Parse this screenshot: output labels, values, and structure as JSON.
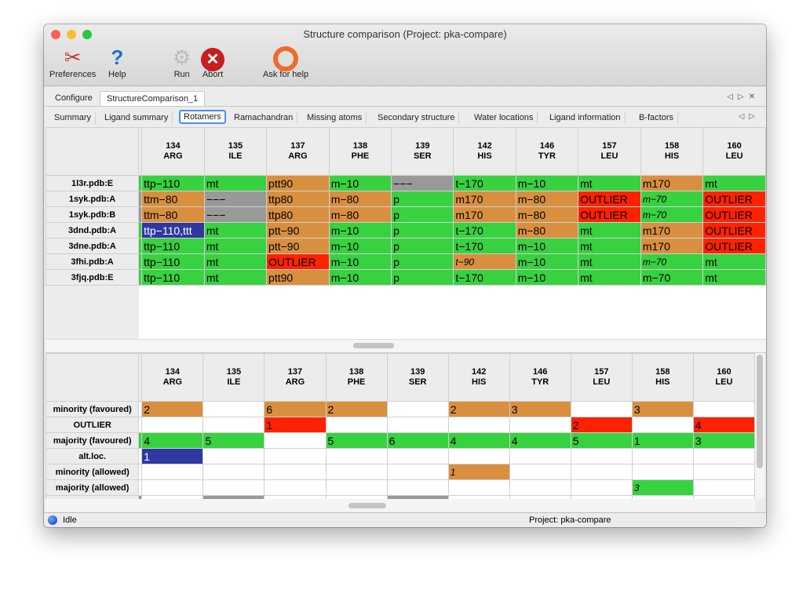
{
  "window": {
    "title": "Structure comparison (Project: pka-compare)"
  },
  "toolbar": [
    {
      "label": "Preferences",
      "icon": "tools-icon"
    },
    {
      "label": "Help",
      "icon": "help-icon"
    },
    {
      "label": "Run",
      "icon": "gear-icon"
    },
    {
      "label": "Abort",
      "icon": "abort-icon"
    },
    {
      "label": "Ask for help",
      "icon": "lifebuoy-icon"
    }
  ],
  "main_tabs": [
    {
      "label": "Configure",
      "active": false
    },
    {
      "label": "StructureComparison_1",
      "active": true
    }
  ],
  "sub_tabs": [
    {
      "label": "Summary"
    },
    {
      "label": "Ligand summary"
    },
    {
      "label": "Rotamers",
      "active": true
    },
    {
      "label": "Ramachandran"
    },
    {
      "label": "Missing atoms"
    },
    {
      "label": "Secondary structure"
    },
    {
      "label": "Water locations"
    },
    {
      "label": "Ligand information"
    },
    {
      "label": "B-factors"
    }
  ],
  "colors": {
    "g": "#38d140",
    "o": "#d89040",
    "r": "#ff2200",
    "x": "#999999",
    "b": "#2e38a0",
    "w": "#ffffff"
  },
  "columns": [
    {
      "num": "134",
      "res": "ARG"
    },
    {
      "num": "135",
      "res": "ILE"
    },
    {
      "num": "137",
      "res": "ARG"
    },
    {
      "num": "138",
      "res": "PHE"
    },
    {
      "num": "139",
      "res": "SER"
    },
    {
      "num": "142",
      "res": "HIS"
    },
    {
      "num": "146",
      "res": "TYR"
    },
    {
      "num": "157",
      "res": "LEU"
    },
    {
      "num": "158",
      "res": "HIS"
    },
    {
      "num": "160",
      "res": "LEU"
    }
  ],
  "rotamers_table": [
    {
      "label": "1l3r.pdb:E",
      "stripe": "g",
      "cells": [
        [
          "ttp−110",
          "g"
        ],
        [
          "mt",
          "g"
        ],
        [
          "ptt90",
          "o"
        ],
        [
          "m−10",
          "g"
        ],
        [
          "−−−",
          "x"
        ],
        [
          "t−170",
          "g"
        ],
        [
          "m−10",
          "g"
        ],
        [
          "mt",
          "g"
        ],
        [
          "m170",
          "o"
        ],
        [
          "mt",
          "g"
        ]
      ]
    },
    {
      "label": "1syk.pdb:A",
      "stripe": "x",
      "cells": [
        [
          "ttm−80",
          "o"
        ],
        [
          "−−−",
          "x"
        ],
        [
          "ttp80",
          "o"
        ],
        [
          "m−80",
          "o"
        ],
        [
          "p",
          "g"
        ],
        [
          "m170",
          "o"
        ],
        [
          "m−80",
          "o"
        ],
        [
          "OUTLIER",
          "r"
        ],
        [
          "m−70",
          "g",
          true
        ],
        [
          "OUTLIER",
          "r"
        ]
      ]
    },
    {
      "label": "1syk.pdb:B",
      "stripe": "x",
      "cells": [
        [
          "ttm−80",
          "o"
        ],
        [
          "−−−",
          "x"
        ],
        [
          "ttp80",
          "o"
        ],
        [
          "m−80",
          "o"
        ],
        [
          "p",
          "g"
        ],
        [
          "m170",
          "o"
        ],
        [
          "m−80",
          "o"
        ],
        [
          "OUTLIER",
          "r"
        ],
        [
          "m−70",
          "g",
          true
        ],
        [
          "OUTLIER",
          "r"
        ]
      ]
    },
    {
      "label": "3dnd.pdb:A",
      "stripe": "g",
      "cells": [
        [
          "ttp−110,ttt",
          "b"
        ],
        [
          "mt",
          "g"
        ],
        [
          "ptt−90",
          "o"
        ],
        [
          "m−10",
          "g"
        ],
        [
          "p",
          "g"
        ],
        [
          "t−170",
          "g"
        ],
        [
          "m−80",
          "o"
        ],
        [
          "mt",
          "g"
        ],
        [
          "m170",
          "o"
        ],
        [
          "OUTLIER",
          "r"
        ]
      ]
    },
    {
      "label": "3dne.pdb:A",
      "stripe": "g",
      "cells": [
        [
          "ttp−110",
          "g"
        ],
        [
          "mt",
          "g"
        ],
        [
          "ptt−90",
          "o"
        ],
        [
          "m−10",
          "g"
        ],
        [
          "p",
          "g"
        ],
        [
          "t−170",
          "g"
        ],
        [
          "m−10",
          "g"
        ],
        [
          "mt",
          "g"
        ],
        [
          "m170",
          "o"
        ],
        [
          "OUTLIER",
          "r"
        ]
      ]
    },
    {
      "label": "3fhi.pdb:A",
      "stripe": "g",
      "cells": [
        [
          "ttp−110",
          "g"
        ],
        [
          "mt",
          "g"
        ],
        [
          "OUTLIER",
          "r"
        ],
        [
          "m−10",
          "g"
        ],
        [
          "p",
          "g"
        ],
        [
          "t−90",
          "o",
          true
        ],
        [
          "m−10",
          "g"
        ],
        [
          "mt",
          "g"
        ],
        [
          "m−70",
          "g",
          true
        ],
        [
          "mt",
          "g"
        ]
      ]
    },
    {
      "label": "3fjq.pdb:E",
      "stripe": "g",
      "cells": [
        [
          "ttp−110",
          "g"
        ],
        [
          "mt",
          "g"
        ],
        [
          "ptt90",
          "o"
        ],
        [
          "m−10",
          "g"
        ],
        [
          "p",
          "g"
        ],
        [
          "t−170",
          "g"
        ],
        [
          "m−10",
          "g"
        ],
        [
          "mt",
          "g"
        ],
        [
          "m−70",
          "g"
        ],
        [
          "mt",
          "g"
        ]
      ]
    }
  ],
  "summary_table": [
    {
      "label": "minority (favoured)",
      "stripe": "w",
      "cells": [
        [
          "2",
          "o"
        ],
        [
          "",
          "w"
        ],
        [
          "6",
          "o"
        ],
        [
          "2",
          "o"
        ],
        [
          "",
          "w"
        ],
        [
          "2",
          "o"
        ],
        [
          "3",
          "o"
        ],
        [
          "",
          "w"
        ],
        [
          "3",
          "o"
        ],
        [
          "",
          "w"
        ]
      ]
    },
    {
      "label": "OUTLIER",
      "stripe": "w",
      "cells": [
        [
          "",
          "w"
        ],
        [
          "",
          "w"
        ],
        [
          "1",
          "r"
        ],
        [
          "",
          "w"
        ],
        [
          "",
          "w"
        ],
        [
          "",
          "w"
        ],
        [
          "",
          "w"
        ],
        [
          "2",
          "r"
        ],
        [
          "",
          "w"
        ],
        [
          "4",
          "r"
        ]
      ]
    },
    {
      "label": "majority (favoured)",
      "stripe": "g",
      "cells": [
        [
          "4",
          "g"
        ],
        [
          "5",
          "g"
        ],
        [
          "",
          "w"
        ],
        [
          "5",
          "g"
        ],
        [
          "6",
          "g"
        ],
        [
          "4",
          "g"
        ],
        [
          "4",
          "g"
        ],
        [
          "5",
          "g"
        ],
        [
          "1",
          "g"
        ],
        [
          "3",
          "g"
        ]
      ]
    },
    {
      "label": "alt.loc.",
      "stripe": "w",
      "cells": [
        [
          "1",
          "b"
        ],
        [
          "",
          "w"
        ],
        [
          "",
          "w"
        ],
        [
          "",
          "w"
        ],
        [
          "",
          "w"
        ],
        [
          "",
          "w"
        ],
        [
          "",
          "w"
        ],
        [
          "",
          "w"
        ],
        [
          "",
          "w"
        ],
        [
          "",
          "w"
        ]
      ]
    },
    {
      "label": "minority (allowed)",
      "stripe": "w",
      "cells": [
        [
          "",
          "w"
        ],
        [
          "",
          "w"
        ],
        [
          "",
          "w"
        ],
        [
          "",
          "w"
        ],
        [
          "",
          "w"
        ],
        [
          "1",
          "o",
          true
        ],
        [
          "",
          "w"
        ],
        [
          "",
          "w"
        ],
        [
          "",
          "w"
        ],
        [
          "",
          "w"
        ]
      ]
    },
    {
      "label": "majority (allowed)",
      "stripe": "w",
      "cells": [
        [
          "",
          "w"
        ],
        [
          "",
          "w"
        ],
        [
          "",
          "w"
        ],
        [
          "",
          "w"
        ],
        [
          "",
          "w"
        ],
        [
          "",
          "w"
        ],
        [
          "",
          "w"
        ],
        [
          "",
          "w"
        ],
        [
          "3",
          "g",
          true
        ],
        [
          "",
          "w"
        ]
      ]
    },
    {
      "label": "",
      "stripe": "x",
      "cells": [
        [
          "",
          "w"
        ],
        [
          "",
          "x"
        ],
        [
          "",
          "w"
        ],
        [
          "",
          "w"
        ],
        [
          "",
          "x"
        ],
        [
          "",
          "w"
        ],
        [
          "",
          "w"
        ],
        [
          "",
          "w"
        ],
        [
          "",
          "w"
        ],
        [
          "",
          "w"
        ]
      ]
    }
  ],
  "status": {
    "state": "Idle",
    "project": "Project: pka-compare"
  }
}
